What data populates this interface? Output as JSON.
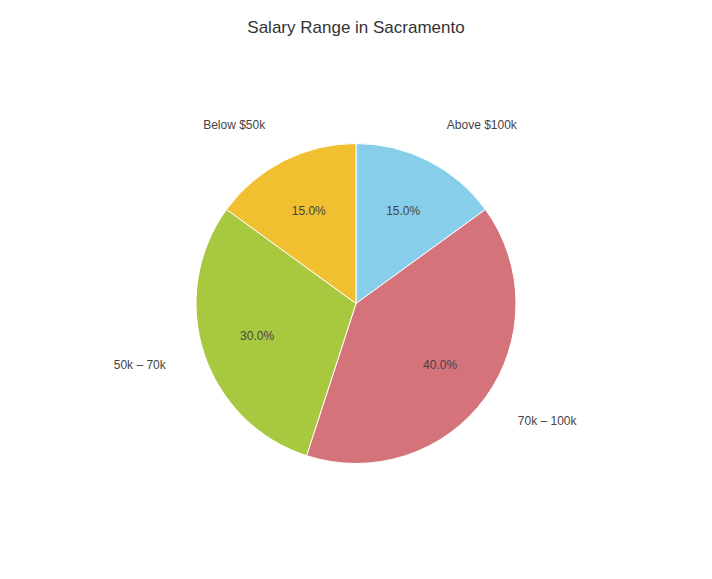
{
  "chart_data": {
    "type": "pie",
    "title": "Salary Range in Sacramento",
    "categories": [
      "Above $100k",
      "70k – 100k",
      "50k – 70k",
      "Below $50k"
    ],
    "values": [
      15.0,
      40.0,
      30.0,
      15.0
    ],
    "value_labels": [
      "15.0%",
      "40.0%",
      "30.0%",
      "15.0%"
    ],
    "colors": [
      "#87ceeb",
      "#d4737a",
      "#a8c840",
      "#f0c030"
    ],
    "data_labels": true
  }
}
